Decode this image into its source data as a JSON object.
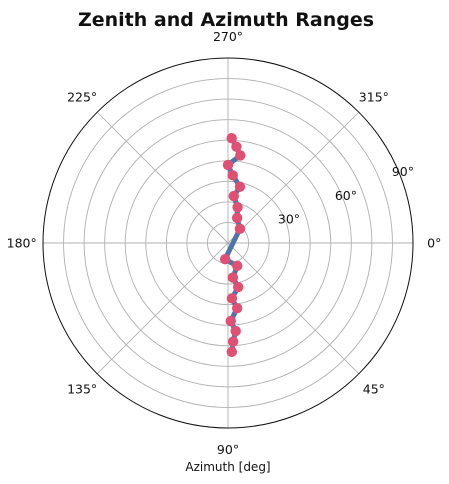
{
  "chart_data": {
    "type": "line",
    "projection": "polar",
    "title": "Zenith and Azimuth Ranges",
    "xlabel": "Azimuth [deg]",
    "ylabel": "",
    "theta_direction": "clockwise",
    "theta_zero_location": "right",
    "angle_tick_labels": [
      "0°",
      "45°",
      "90°",
      "135°",
      "180°",
      "225°",
      "270°",
      "315°"
    ],
    "angle_ticks_deg": [
      0,
      45,
      90,
      135,
      180,
      225,
      270,
      315
    ],
    "radial_range": [
      0,
      90
    ],
    "radial_tick_labels": [
      "30°",
      "60°",
      "90°"
    ],
    "radial_ticks": [
      30,
      60,
      90
    ],
    "radial_label_angle_deg": 337.5,
    "grid": true,
    "series": [
      {
        "color": "#4f74a8",
        "marker_color": "#e05072",
        "points": [
          {
            "azimuth": 272,
            "zenith": 51
          },
          {
            "azimuth": 275,
            "zenith": 47
          },
          {
            "azimuth": 278,
            "zenith": 43
          },
          {
            "azimuth": 270,
            "zenith": 38
          },
          {
            "azimuth": 274,
            "zenith": 33
          },
          {
            "azimuth": 282,
            "zenith": 28
          },
          {
            "azimuth": 277,
            "zenith": 23
          },
          {
            "azimuth": 285,
            "zenith": 18
          },
          {
            "azimuth": 290,
            "zenith": 13
          },
          {
            "azimuth": 310,
            "zenith": 9
          },
          {
            "azimuth": 100,
            "zenith": 8
          },
          {
            "azimuth": 68,
            "zenith": 12
          },
          {
            "azimuth": 82,
            "zenith": 17
          },
          {
            "azimuth": 77,
            "zenith": 22
          },
          {
            "azimuth": 86,
            "zenith": 27
          },
          {
            "azimuth": 82,
            "zenith": 32
          },
          {
            "azimuth": 88,
            "zenith": 38
          },
          {
            "azimuth": 85,
            "zenith": 43
          },
          {
            "azimuth": 87,
            "zenith": 48
          },
          {
            "azimuth": 88,
            "zenith": 53
          }
        ]
      }
    ]
  }
}
